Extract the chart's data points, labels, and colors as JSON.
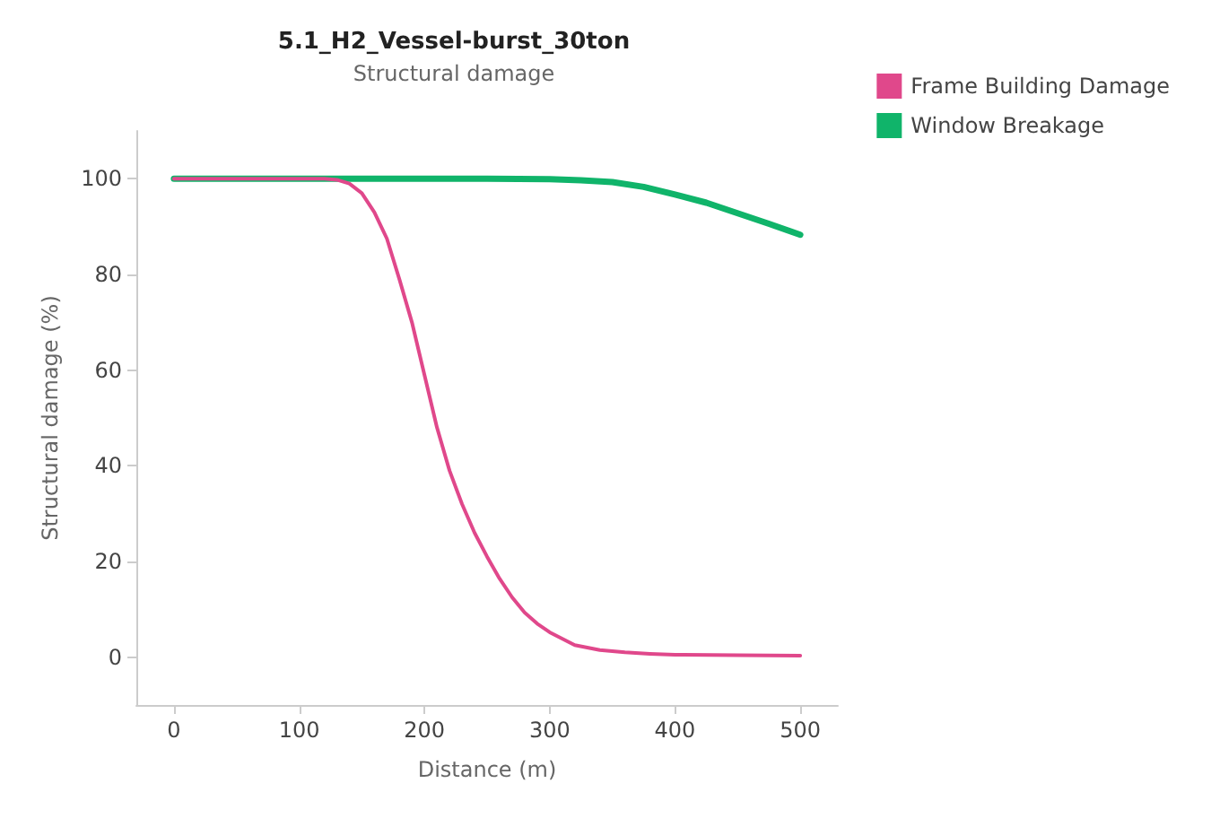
{
  "chart_data": {
    "type": "line",
    "title": "5.1_H2_Vessel-burst_30ton",
    "subtitle": "Structural damage",
    "xlabel": "Distance (m)",
    "ylabel": "Structural damage (%)",
    "xlim": [
      -30,
      530
    ],
    "xticks": [
      0,
      100,
      200,
      300,
      400,
      500
    ],
    "ylim": [
      -10,
      110
    ],
    "yticks": [
      0,
      20,
      40,
      60,
      80,
      100
    ],
    "grid": false,
    "legend": "top right",
    "marker": "none",
    "line_style": "solid",
    "series": [
      {
        "name": "Frame Building Damage",
        "color": "#e0488b",
        "x": [
          0,
          50,
          100,
          120,
          130,
          140,
          150,
          160,
          170,
          180,
          190,
          200,
          210,
          220,
          230,
          240,
          250,
          260,
          270,
          280,
          290,
          300,
          320,
          340,
          360,
          380,
          400,
          450,
          500
        ],
        "values": [
          100,
          100,
          100,
          100,
          99.8,
          99,
          97,
          93,
          87.5,
          79,
          70,
          59,
          48,
          39,
          32,
          26,
          21,
          16.4,
          12.5,
          9.3,
          7,
          5.2,
          2.5,
          1.5,
          1,
          0.7,
          0.5,
          0.4,
          0.3
        ]
      },
      {
        "name": "Window Breakage",
        "color": "#10b46a",
        "x": [
          0,
          100,
          200,
          250,
          300,
          325,
          350,
          375,
          400,
          425,
          450,
          475,
          500
        ],
        "values": [
          100,
          100,
          100,
          100,
          99.9,
          99.7,
          99.3,
          98.3,
          96.7,
          95,
          92.8,
          90.6,
          88.3
        ]
      }
    ]
  }
}
